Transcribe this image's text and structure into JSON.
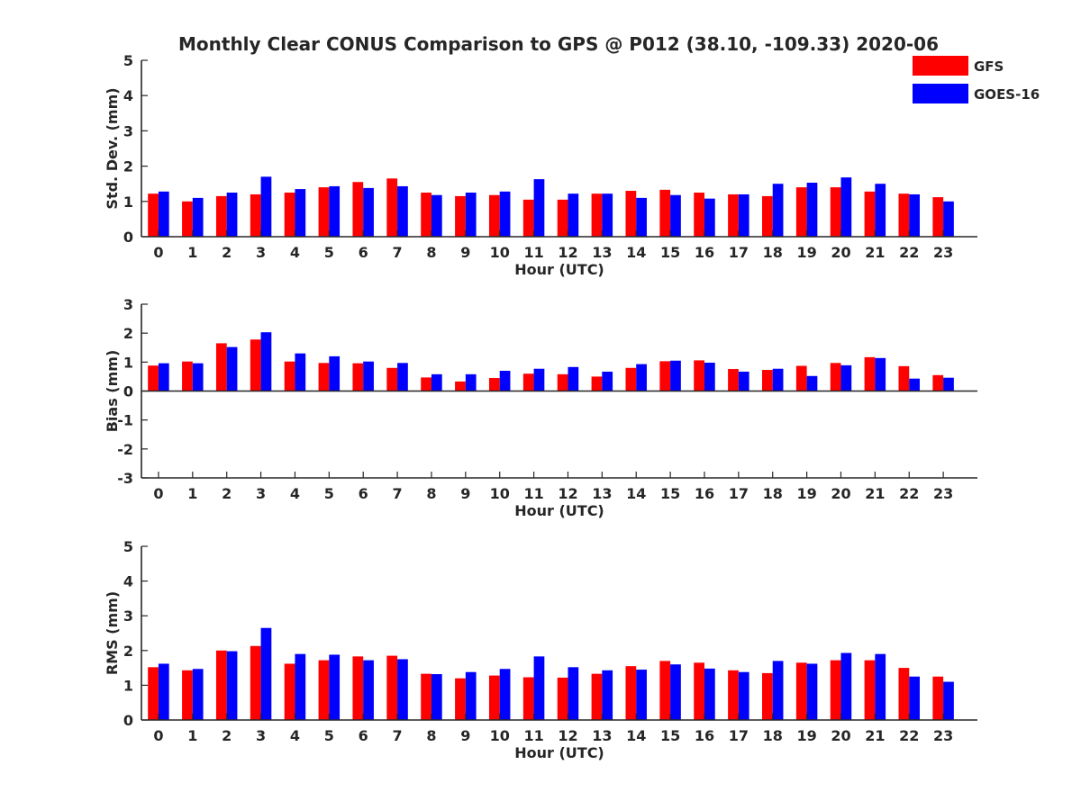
{
  "chart_data": [
    {
      "type": "bar",
      "title": "Monthly Clear CONUS Comparison to GPS @ P012 (38.10, -109.33) 2020-06",
      "xlabel": "Hour (UTC)",
      "ylabel": "Std. Dev. (mm)",
      "ylim": [
        0,
        5
      ],
      "yticks": [
        "0",
        "1",
        "2",
        "3",
        "4",
        "5"
      ],
      "categories": [
        "0",
        "1",
        "2",
        "3",
        "4",
        "5",
        "6",
        "7",
        "8",
        "9",
        "10",
        "11",
        "12",
        "13",
        "14",
        "15",
        "16",
        "17",
        "18",
        "19",
        "20",
        "21",
        "22",
        "23"
      ],
      "legend_position": "top-right",
      "series": [
        {
          "name": "GFS",
          "color": "#ff0000",
          "values": [
            1.22,
            1.0,
            1.15,
            1.2,
            1.25,
            1.4,
            1.55,
            1.65,
            1.25,
            1.15,
            1.18,
            1.05,
            1.05,
            1.22,
            1.3,
            1.33,
            1.25,
            1.2,
            1.15,
            1.4,
            1.4,
            1.28,
            1.22,
            1.12
          ]
        },
        {
          "name": "GOES-16",
          "color": "#0000ff",
          "values": [
            1.28,
            1.1,
            1.25,
            1.7,
            1.35,
            1.43,
            1.38,
            1.43,
            1.18,
            1.25,
            1.28,
            1.63,
            1.22,
            1.22,
            1.1,
            1.18,
            1.08,
            1.2,
            1.5,
            1.53,
            1.68,
            1.5,
            1.2,
            1.0
          ]
        }
      ]
    },
    {
      "type": "bar",
      "xlabel": "Hour (UTC)",
      "ylabel": "Bias (mm)",
      "ylim": [
        -3,
        3
      ],
      "yticks": [
        "-3",
        "-2",
        "-1",
        "0",
        "1",
        "2",
        "3"
      ],
      "categories": [
        "0",
        "1",
        "2",
        "3",
        "4",
        "5",
        "6",
        "7",
        "8",
        "9",
        "10",
        "11",
        "12",
        "13",
        "14",
        "15",
        "16",
        "17",
        "18",
        "19",
        "20",
        "21",
        "22",
        "23"
      ],
      "series": [
        {
          "name": "GFS",
          "color": "#ff0000",
          "values": [
            0.88,
            1.02,
            1.65,
            1.78,
            1.02,
            0.97,
            0.96,
            0.8,
            0.47,
            0.33,
            0.45,
            0.6,
            0.58,
            0.5,
            0.8,
            1.03,
            1.06,
            0.76,
            0.73,
            0.87,
            0.97,
            1.17,
            0.86,
            0.55
          ]
        },
        {
          "name": "GOES-16",
          "color": "#0000ff",
          "values": [
            0.96,
            0.96,
            1.52,
            2.03,
            1.3,
            1.2,
            1.02,
            0.97,
            0.58,
            0.58,
            0.7,
            0.77,
            0.83,
            0.67,
            0.93,
            1.05,
            0.98,
            0.67,
            0.77,
            0.52,
            0.89,
            1.14,
            0.43,
            0.46
          ]
        }
      ]
    },
    {
      "type": "bar",
      "xlabel": "Hour (UTC)",
      "ylabel": "RMS (mm)",
      "ylim": [
        0,
        5
      ],
      "yticks": [
        "0",
        "1",
        "2",
        "3",
        "4",
        "5"
      ],
      "categories": [
        "0",
        "1",
        "2",
        "3",
        "4",
        "5",
        "6",
        "7",
        "8",
        "9",
        "10",
        "11",
        "12",
        "13",
        "14",
        "15",
        "16",
        "17",
        "18",
        "19",
        "20",
        "21",
        "22",
        "23"
      ],
      "series": [
        {
          "name": "GFS",
          "color": "#ff0000",
          "values": [
            1.52,
            1.43,
            2.0,
            2.13,
            1.62,
            1.72,
            1.83,
            1.85,
            1.33,
            1.2,
            1.28,
            1.23,
            1.22,
            1.33,
            1.55,
            1.7,
            1.65,
            1.43,
            1.35,
            1.65,
            1.72,
            1.72,
            1.5,
            1.25
          ]
        },
        {
          "name": "GOES-16",
          "color": "#0000ff",
          "values": [
            1.62,
            1.47,
            1.98,
            2.65,
            1.9,
            1.88,
            1.72,
            1.75,
            1.32,
            1.38,
            1.47,
            1.83,
            1.52,
            1.43,
            1.45,
            1.6,
            1.48,
            1.38,
            1.7,
            1.62,
            1.93,
            1.9,
            1.25,
            1.1
          ]
        }
      ]
    }
  ]
}
